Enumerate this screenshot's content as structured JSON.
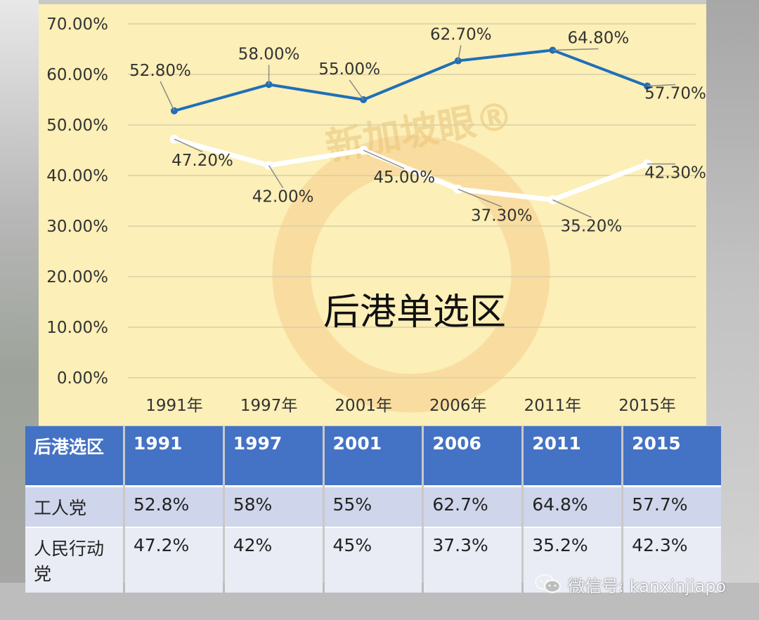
{
  "chart_data": {
    "type": "line",
    "title": "后港单选区",
    "categories": [
      "1991年",
      "1997年",
      "2001年",
      "2006年",
      "2011年",
      "2015年"
    ],
    "yticks": [
      "70.00%",
      "60.00%",
      "50.00%",
      "40.00%",
      "30.00%",
      "20.00%",
      "10.00%",
      "0.00%"
    ],
    "ylim": [
      0,
      70
    ],
    "grid": true,
    "series": [
      {
        "values": [
          52.8,
          58.0,
          55.0,
          62.7,
          64.8,
          57.7
        ],
        "labels": [
          "52.80%",
          "58.00%",
          "55.00%",
          "62.70%",
          "64.80%",
          "57.70%"
        ],
        "color": "#1f6fb8"
      },
      {
        "values": [
          47.2,
          42.0,
          45.0,
          37.3,
          35.2,
          42.3
        ],
        "labels": [
          "47.20%",
          "42.00%",
          "45.00%",
          "37.30%",
          "35.20%",
          "42.30%"
        ],
        "color": "#ffffff"
      }
    ]
  },
  "watermark": {
    "text": "新加坡眼®"
  },
  "table": {
    "header": [
      "后港选区",
      "1991",
      "1997",
      "2001",
      "2006",
      "2011",
      "2015"
    ],
    "rows": [
      [
        "工人党",
        "52.8%",
        "58%",
        "55%",
        "62.7%",
        "64.8%",
        "57.7%"
      ],
      [
        "人民行动党",
        "47.2%",
        "42%",
        "45%",
        "37.3%",
        "35.2%",
        "42.3%"
      ]
    ],
    "colors": {
      "header_bg": "#4472c4",
      "row1_bg": "#cfd5ea",
      "row2_bg": "#e9ebf5"
    }
  },
  "footer": {
    "wechat_text": "微信号: kanxinjiapo",
    "icon": "wechat-icon"
  }
}
